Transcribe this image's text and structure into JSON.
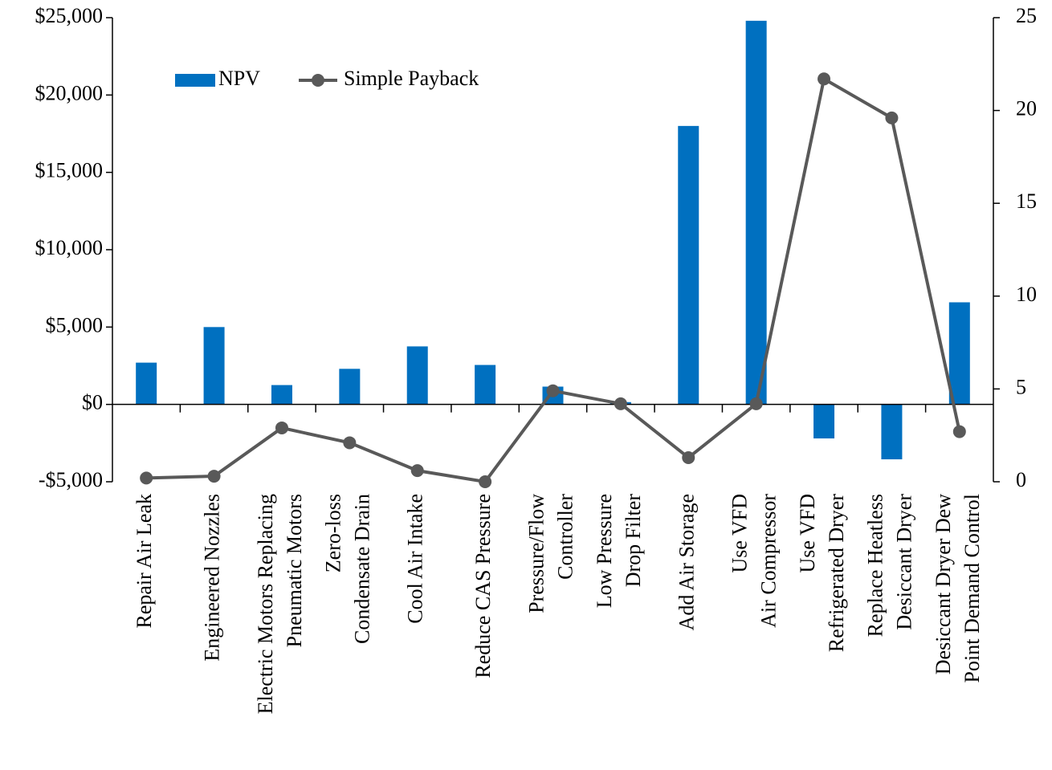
{
  "chart_data": {
    "type": "bar_line",
    "categories": [
      "Repair Air Leak",
      "Engineered Nozzles",
      "Electric Motors Replacing\nPneumatic Motors",
      "Zero-loss\nCondensate Drain",
      "Cool Air Intake",
      "Reduce CAS Pressure",
      "Pressure/Flow\nController",
      "Low Pressure\nDrop Filter",
      "Add Air Storage",
      "Use VFD\nAir Compressor",
      "Use VFD\nRefrigerated Dryer",
      "Replace Heatless\nDesiccant Dryer",
      "Desiccant Dryer Dew\nPoint Demand Control"
    ],
    "series": [
      {
        "name": "NPV",
        "type": "bar",
        "color": "#0070c0",
        "values": [
          2700,
          5000,
          1250,
          2300,
          3750,
          2550,
          1150,
          150,
          18000,
          24800,
          -2200,
          -3550,
          6600
        ]
      },
      {
        "name": "Simple Payback",
        "type": "line",
        "axis": "y2",
        "color": "#595959",
        "values": [
          0.2,
          0.3,
          2.9,
          2.1,
          0.6,
          0,
          4.9,
          4.2,
          1.3,
          4.2,
          21.7,
          19.6,
          2.7
        ]
      }
    ],
    "ylim": [
      -5000,
      25000
    ],
    "yticks": [
      {
        "value": -5000,
        "label": "-$5,000"
      },
      {
        "value": 0,
        "label": "$0"
      },
      {
        "value": 5000,
        "label": "$5,000"
      },
      {
        "value": 10000,
        "label": "$10,000"
      },
      {
        "value": 15000,
        "label": "$15,000"
      },
      {
        "value": 20000,
        "label": "$20,000"
      },
      {
        "value": 25000,
        "label": "$25,000"
      }
    ],
    "y2lim": [
      0,
      25
    ],
    "y2ticks": [
      0,
      5,
      10,
      15,
      20,
      25
    ],
    "legend": "upper left",
    "grid": false
  }
}
